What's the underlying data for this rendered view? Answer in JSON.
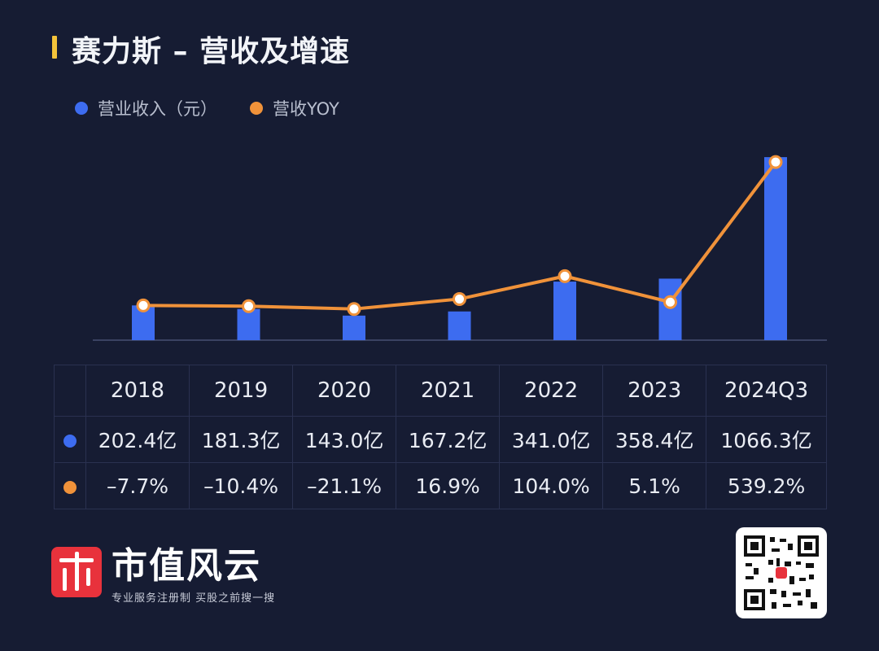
{
  "header": {
    "title": "赛力斯 – 营收及增速"
  },
  "legend": [
    {
      "label": "营业收入（元）",
      "color": "#3d6cf0"
    },
    {
      "label": "营收YOY",
      "color": "#f0923a"
    }
  ],
  "chart_data": {
    "type": "bar",
    "categories": [
      "2018",
      "2019",
      "2020",
      "2021",
      "2022",
      "2023",
      "2024Q3"
    ],
    "series": [
      {
        "name": "营业收入（元）",
        "type": "bar",
        "unit": "亿",
        "values": [
          202.4,
          181.3,
          143.0,
          167.2,
          341.0,
          358.4,
          1066.3
        ]
      },
      {
        "name": "营收YOY",
        "type": "line",
        "unit": "%",
        "values": [
          -7.7,
          -10.4,
          -21.1,
          16.9,
          104.0,
          5.1,
          539.2
        ]
      }
    ],
    "title": "赛力斯 – 营收及增速",
    "xlabel": "",
    "ylabel": "",
    "bar_ylim": [
      0,
      1100
    ],
    "line_ylim": [
      -140,
      580
    ],
    "grid": false,
    "legend_position": "top-left"
  },
  "table": {
    "years": [
      "2018",
      "2019",
      "2020",
      "2021",
      "2022",
      "2023",
      "2024Q3"
    ],
    "revenue": [
      "202.4亿",
      "181.3亿",
      "143.0亿",
      "167.2亿",
      "341.0亿",
      "358.4亿",
      "1066.3亿"
    ],
    "yoy": [
      "–7.7%",
      "–10.4%",
      "–21.1%",
      "16.9%",
      "104.0%",
      "5.1%",
      "539.2%"
    ]
  },
  "footer": {
    "brand_name": "市值风云",
    "brand_slogan": "专业服务注册制 买股之前搜一搜",
    "logo_icon": "shizhifengyun-logo-icon",
    "qr_icon": "qr-code-icon"
  }
}
